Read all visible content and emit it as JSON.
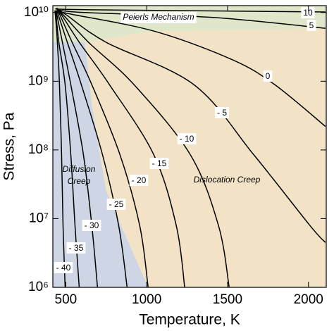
{
  "chart_data": {
    "type": "contour",
    "x_label": "Temperature, K",
    "y_label": "Stress, Pa",
    "xlim": [
      420,
      2110
    ],
    "ylim": [
      1000000,
      12600000000
    ],
    "y_log": true,
    "xticks": [
      500,
      1000,
      1500,
      2000
    ],
    "yticks": [
      {
        "value": 1000000,
        "label": "10⁶"
      },
      {
        "value": 10000000,
        "label": "10⁷"
      },
      {
        "value": 100000000,
        "label": "10⁸"
      },
      {
        "value": 1000000000,
        "label": "10⁹"
      },
      {
        "value": 10000000000,
        "label": "10¹⁰"
      }
    ],
    "background_color": "#f3e3c6",
    "regions": [
      {
        "label": [
          "Peierls Mechanism"
        ],
        "color": "#dfe7cb",
        "x": [
          420,
          2110,
          2110,
          1009,
          618,
          420
        ],
        "y": [
          12600000000,
          12600000000,
          5900000000,
          5300000000,
          3700000000,
          3700000000
        ]
      },
      {
        "label": [
          "Diffusion",
          "Creep"
        ],
        "color": "#ced6e6",
        "x": [
          420,
          618,
          661,
          748,
          879,
          1009,
          420
        ],
        "y": [
          3700000000,
          3700000000,
          450000000,
          26000000,
          5000000,
          1000000,
          1000000
        ]
      },
      {
        "label": [
          "Dislocation Creep"
        ]
      }
    ],
    "contours": [
      {
        "label": "10",
        "x": [
          444,
          618,
          2105
        ],
        "y": [
          11500000000,
          11000000000,
          10200000000
        ]
      },
      {
        "label": "5",
        "x": [
          444,
          618,
          1401,
          2105
        ],
        "y": [
          11000000000,
          10000000000,
          8500000000,
          5900000000
        ]
      },
      {
        "label": "0",
        "x": [
          444,
          531,
          1053,
          1531,
          1792,
          2105
        ],
        "y": [
          10500000000,
          9500000000,
          5300000000,
          2050000000,
          890000000,
          220000000
        ]
      },
      {
        "label": "- 5",
        "x": [
          444,
          496,
          748,
          1292,
          1662,
          2010,
          2105
        ],
        "y": [
          10500000000,
          9500000000,
          3700000000,
          890000000,
          85000000,
          7900000,
          4500000
        ]
      },
      {
        "label": "- 10",
        "x": [
          444,
          479,
          640,
          922,
          1270,
          1444,
          1510
        ],
        "y": [
          10500000000,
          9500000000,
          3700000000,
          890000000,
          85000000,
          7900000,
          1000000
        ]
      },
      {
        "label": "- 15",
        "x": [
          444,
          470,
          583,
          770,
          1044,
          1183,
          1235
        ],
        "y": [
          10500000000,
          9500000000,
          3700000000,
          890000000,
          85000000,
          7900000,
          1000000
        ]
      },
      {
        "label": "- 20",
        "x": [
          444,
          461,
          539,
          661,
          835,
          957,
          1009
        ],
        "y": [
          10500000000,
          9500000000,
          3700000000,
          890000000,
          85000000,
          7900000,
          1000000
        ]
      },
      {
        "label": "- 25",
        "x": [
          444,
          452,
          509,
          596,
          727,
          827,
          879
        ],
        "y": [
          10500000000,
          9500000000,
          3700000000,
          890000000,
          85000000,
          7900000,
          1000000
        ]
      },
      {
        "label": "- 30",
        "x": [
          439,
          444,
          479,
          531,
          609,
          661,
          696
        ],
        "y": [
          10500000000,
          9500000000,
          3700000000,
          890000000,
          85000000,
          7900000,
          1000000
        ]
      },
      {
        "label": "- 35",
        "x": [
          435,
          439,
          457,
          496,
          531,
          557,
          583
        ],
        "y": [
          10500000000,
          9500000000,
          3700000000,
          890000000,
          85000000,
          7900000,
          1000000
        ]
      },
      {
        "label": "- 40",
        "x": [
          431,
          435,
          448,
          461,
          474,
          483,
          496
        ],
        "y": [
          10500000000,
          9500000000,
          3700000000,
          890000000,
          85000000,
          7900000,
          1000000
        ]
      }
    ]
  }
}
